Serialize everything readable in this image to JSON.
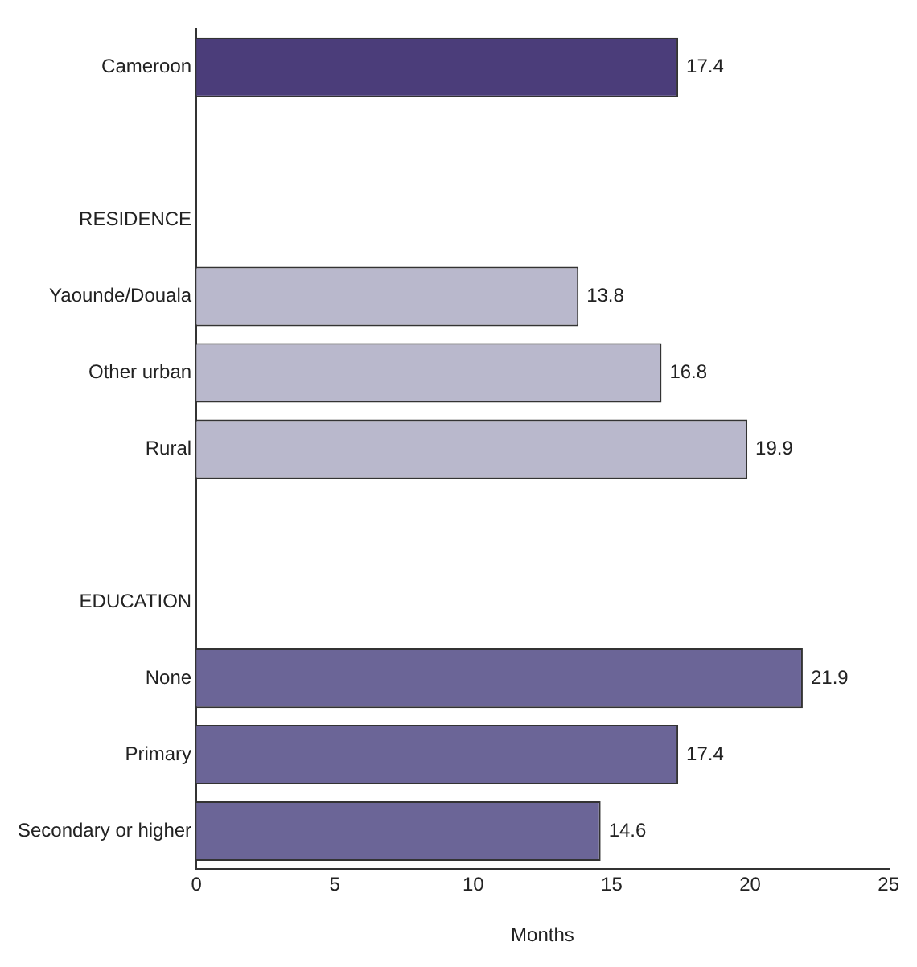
{
  "chart_data": {
    "type": "bar",
    "orientation": "horizontal",
    "xlabel": "Months",
    "categories": [
      "Cameroon",
      null,
      "RESIDENCE",
      "Yaounde/Douala",
      "Other urban",
      "Rural",
      null,
      "EDUCATION",
      "None",
      "Primary",
      "Secondary or higher"
    ],
    "values": [
      17.4,
      null,
      null,
      13.8,
      16.8,
      19.9,
      null,
      null,
      21.9,
      17.4,
      14.6
    ],
    "colors": [
      "#4b3d7a",
      null,
      null,
      "#b9b8cc",
      "#b9b8cc",
      "#b9b8cc",
      null,
      null,
      "#6b6597",
      "#6b6597",
      "#6b6597"
    ],
    "xlim": [
      0,
      25
    ],
    "xticks": [
      0,
      5,
      10,
      15,
      20,
      25
    ],
    "data_labels": true,
    "grid": false,
    "legend": false
  }
}
